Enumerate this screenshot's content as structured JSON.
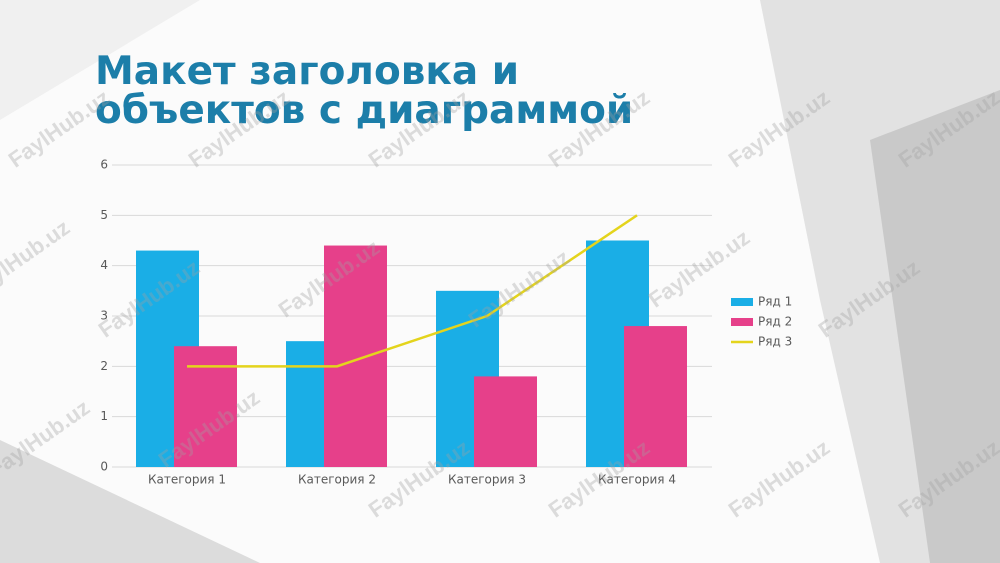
{
  "title": "Макет заголовка и объектов с диаграммой",
  "watermark": "FaylHub.uz",
  "chart_data": {
    "type": "bar",
    "categories": [
      "Категория 1",
      "Категория 2",
      "Категория 3",
      "Категория 4"
    ],
    "series": [
      {
        "name": "Ряд 1",
        "type": "bar",
        "color": "#1aaee6",
        "values": [
          4.3,
          2.5,
          3.5,
          4.5
        ]
      },
      {
        "name": "Ряд 2",
        "type": "bar",
        "color": "#e6408a",
        "values": [
          2.4,
          4.4,
          1.8,
          2.8
        ]
      },
      {
        "name": "Ряд 3",
        "type": "line",
        "color": "#e4d41c",
        "values": [
          2,
          2,
          3,
          5
        ]
      }
    ],
    "ylim": [
      0,
      6
    ],
    "yticks": [
      0,
      1,
      2,
      3,
      4,
      5,
      6
    ],
    "grid": true,
    "legend": "right"
  }
}
